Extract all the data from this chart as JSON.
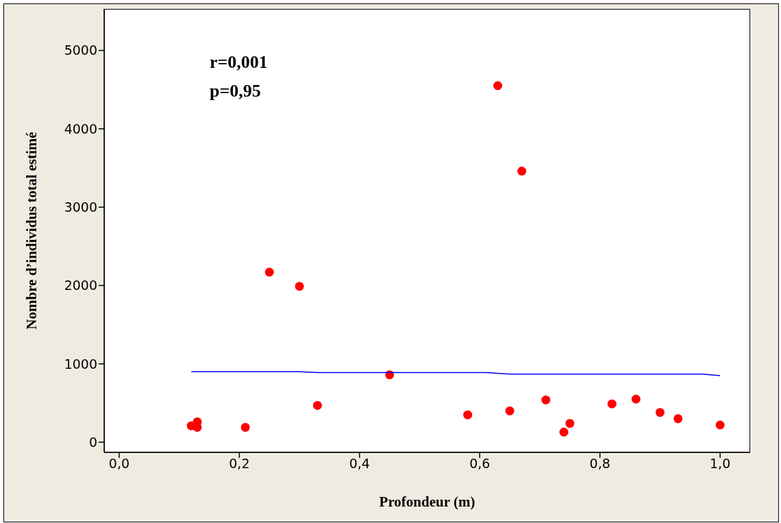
{
  "chart_data": {
    "type": "scatter",
    "xlabel": "Profondeur (m)",
    "ylabel": "Nombre d’individus total estimé",
    "annotations": [
      "r=0,001",
      "p=0,95"
    ],
    "xlim": [
      -0.025,
      1.05
    ],
    "ylim": [
      -130,
      5530
    ],
    "xticks": [
      {
        "value": 0,
        "label": "0,0"
      },
      {
        "value": 0.2,
        "label": "0,2"
      },
      {
        "value": 0.4,
        "label": "0,4"
      },
      {
        "value": 0.6,
        "label": "0,6"
      },
      {
        "value": 0.8,
        "label": "0,8"
      },
      {
        "value": 1,
        "label": "1,0"
      }
    ],
    "yticks": [
      0,
      1000,
      2000,
      3000,
      4000,
      5000
    ],
    "grid": false,
    "legend": false,
    "series": [
      {
        "color": "#ff0000",
        "marker": "circle",
        "x": [
          0.12,
          0.13,
          0.13,
          0.21,
          0.25,
          0.3,
          0.33,
          0.45,
          0.58,
          0.63,
          0.65,
          0.67,
          0.71,
          0.74,
          0.75,
          0.82,
          0.86,
          0.9,
          0.93,
          1.0
        ],
        "values": [
          210,
          260,
          190,
          190,
          2170,
          1990,
          470,
          860,
          350,
          4550,
          400,
          3460,
          540,
          130,
          240,
          490,
          550,
          380,
          300,
          220
        ]
      },
      {
        "type": "line",
        "color": "#0000ff",
        "marker": "none",
        "line_style": "solid",
        "x": [
          0.12,
          0.3,
          0.33,
          0.61,
          0.65,
          0.97,
          1.0
        ],
        "values": [
          900,
          900,
          890,
          890,
          870,
          870,
          850
        ]
      }
    ]
  }
}
